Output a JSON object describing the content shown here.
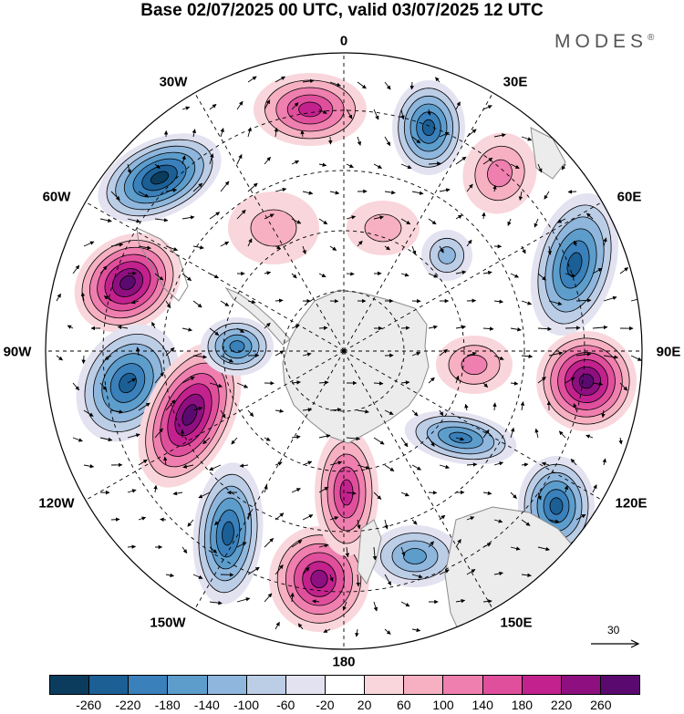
{
  "title": "Base 02/07/2025 00 UTC, valid 03/07/2025 12 UTC",
  "brand": "MODES",
  "brand_mark": "®",
  "longitude_labels": {
    "top": "0",
    "top_left": "30W",
    "top_right": "30E",
    "upper_left": "60W",
    "upper_right": "60E",
    "left": "90W",
    "right": "90E",
    "lower_left": "120W",
    "lower_right": "120E",
    "bottom_left": "150W",
    "bottom_right": "150E",
    "bottom": "180"
  },
  "reference_vector": {
    "label": "30",
    "icon": "arrow-right-icon"
  },
  "colorbar": {
    "colors": [
      "#0b3c5d",
      "#1b5f95",
      "#3a80bb",
      "#5d9dcc",
      "#8fb6dc",
      "#bccde6",
      "#e3e2f0",
      "#ffffff",
      "#f9d6dc",
      "#f6b0c2",
      "#ef7fae",
      "#e04f9c",
      "#c3228e",
      "#8e0f80",
      "#5a0a6e"
    ],
    "ticks": [
      "-260",
      "-220",
      "-180",
      "-140",
      "-100",
      "-60",
      "-20",
      "20",
      "60",
      "100",
      "140",
      "180",
      "220",
      "260"
    ]
  },
  "map_data": {
    "projection": "south polar stereographic",
    "field": "anomaly",
    "colors": {
      "land": "#ececec",
      "coastline": "#8a8a8a",
      "grid": "#000000",
      "vector": "#000000"
    }
  }
}
